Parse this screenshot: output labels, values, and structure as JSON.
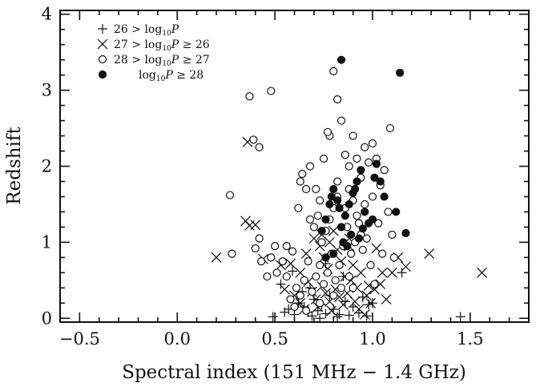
{
  "chart_data": {
    "type": "scatter",
    "title": "",
    "xlabel": "Spectral index (151 MHz − 1.4 GHz)",
    "ylabel": "Redshift",
    "xlim": [
      -0.6,
      1.8
    ],
    "ylim": [
      -0.05,
      4.05
    ],
    "grid": false,
    "legend_position": "top-left",
    "x_major_ticks": [
      -0.5,
      0.0,
      0.5,
      1.0,
      1.5
    ],
    "x_tick_labels": [
      "−0.5",
      "0.0",
      "0.5",
      "1.0",
      "1.5"
    ],
    "y_major_ticks": [
      0,
      1,
      2,
      3,
      4
    ],
    "y_tick_labels": [
      "0",
      "1",
      "2",
      "3",
      "4"
    ],
    "series": [
      {
        "name": "26 > log10P",
        "legend_prefix": "26 > log",
        "legend_suffix": "",
        "marker": "plus",
        "points": [
          [
            0.49,
            0.02
          ],
          [
            0.55,
            0.08
          ],
          [
            0.57,
            0.12
          ],
          [
            0.6,
            0.05
          ],
          [
            0.62,
            0.2
          ],
          [
            0.65,
            0.15
          ],
          [
            0.67,
            0.08
          ],
          [
            0.69,
            0.03
          ],
          [
            0.7,
            0.25
          ],
          [
            0.72,
            0.1
          ],
          [
            0.74,
            0.18
          ],
          [
            0.76,
            0.06
          ],
          [
            0.78,
            0.3
          ],
          [
            0.8,
            0.12
          ],
          [
            0.83,
            0.05
          ],
          [
            0.86,
            0.22
          ],
          [
            0.88,
            0.04
          ],
          [
            0.9,
            0.15
          ],
          [
            0.93,
            0.07
          ],
          [
            0.95,
            0.28
          ],
          [
            0.98,
            0.18
          ],
          [
            1.0,
            0.2
          ],
          [
            0.59,
            0.62
          ],
          [
            0.53,
            0.45
          ],
          [
            0.64,
            0.35
          ],
          [
            0.68,
            0.4
          ],
          [
            1.15,
            0.6
          ],
          [
            0.85,
            0.55
          ],
          [
            0.76,
            0.72
          ],
          [
            1.45,
            0.02
          ],
          [
            0.97,
            0.03
          ],
          [
            0.82,
            0.02
          ],
          [
            0.73,
            0.0
          ]
        ]
      },
      {
        "name": "27 > log10P ≥ 26",
        "legend_prefix": "27 > log",
        "legend_suffix": " ≥ 26",
        "marker": "cross",
        "points": [
          [
            0.36,
            2.32
          ],
          [
            0.35,
            1.28
          ],
          [
            0.37,
            1.22
          ],
          [
            0.4,
            1.23
          ],
          [
            0.2,
            0.8
          ],
          [
            0.44,
            0.78
          ],
          [
            0.53,
            0.7
          ],
          [
            0.58,
            0.72
          ],
          [
            0.63,
            0.6
          ],
          [
            0.66,
            0.85
          ],
          [
            0.7,
            1.05
          ],
          [
            0.73,
            0.95
          ],
          [
            0.75,
            0.8
          ],
          [
            0.77,
            0.65
          ],
          [
            0.8,
            1.15
          ],
          [
            0.82,
            0.9
          ],
          [
            0.84,
            0.75
          ],
          [
            0.86,
            0.55
          ],
          [
            0.88,
            0.95
          ],
          [
            0.9,
            0.7
          ],
          [
            0.92,
            0.4
          ],
          [
            0.94,
            0.6
          ],
          [
            0.97,
            0.3
          ],
          [
            0.99,
            0.2
          ],
          [
            1.02,
            0.92
          ],
          [
            1.04,
            0.45
          ],
          [
            1.07,
            0.25
          ],
          [
            1.1,
            0.6
          ],
          [
            1.13,
            0.8
          ],
          [
            1.17,
            0.68
          ],
          [
            1.29,
            0.85
          ],
          [
            1.56,
            0.6
          ],
          [
            0.55,
            0.38
          ],
          [
            0.6,
            0.3
          ],
          [
            0.63,
            0.2
          ],
          [
            0.65,
            0.12
          ],
          [
            0.67,
            0.48
          ],
          [
            0.69,
            0.35
          ],
          [
            0.71,
            0.25
          ],
          [
            0.72,
            0.15
          ],
          [
            0.74,
            0.42
          ],
          [
            0.76,
            0.33
          ],
          [
            0.78,
            0.22
          ],
          [
            0.79,
            0.1
          ],
          [
            0.81,
            0.38
          ],
          [
            0.83,
            0.28
          ],
          [
            0.85,
            0.18
          ],
          [
            0.87,
            0.33
          ],
          [
            0.89,
            0.5
          ],
          [
            0.91,
            0.22
          ],
          [
            0.93,
            0.12
          ],
          [
            0.96,
            0.05
          ],
          [
            0.98,
            0.43
          ],
          [
            1.01,
            0.38
          ],
          [
            1.05,
            0.6
          ],
          [
            0.78,
            1.0
          ],
          [
            0.74,
            1.1
          ],
          [
            0.88,
            1.05
          ]
        ]
      },
      {
        "name": "28 > log10P ≥ 27",
        "legend_prefix": "28 > log",
        "legend_suffix": " ≥ 27",
        "marker": "open-circle",
        "points": [
          [
            0.37,
            2.92
          ],
          [
            0.48,
            2.99
          ],
          [
            0.42,
            2.25
          ],
          [
            0.39,
            2.35
          ],
          [
            0.27,
            1.62
          ],
          [
            0.42,
            1.05
          ],
          [
            0.4,
            0.92
          ],
          [
            0.28,
            0.85
          ],
          [
            0.43,
            0.75
          ],
          [
            0.46,
            0.55
          ],
          [
            0.48,
            0.8
          ],
          [
            0.51,
            0.6
          ],
          [
            0.56,
            0.95
          ],
          [
            0.59,
            0.88
          ],
          [
            0.62,
            1.45
          ],
          [
            0.63,
            1.8
          ],
          [
            0.66,
            1.7
          ],
          [
            0.64,
            1.9
          ],
          [
            0.68,
            2.0
          ],
          [
            0.71,
            1.7
          ],
          [
            0.73,
            1.55
          ],
          [
            0.75,
            2.1
          ],
          [
            0.78,
            2.4
          ],
          [
            0.8,
            3.25
          ],
          [
            0.82,
            2.88
          ],
          [
            0.84,
            2.6
          ],
          [
            0.86,
            2.15
          ],
          [
            0.88,
            2.0
          ],
          [
            0.9,
            2.4
          ],
          [
            0.92,
            2.1
          ],
          [
            0.94,
            1.85
          ],
          [
            0.96,
            2.25
          ],
          [
            0.98,
            2.05
          ],
          [
            1.0,
            2.3
          ],
          [
            1.02,
            2.1
          ],
          [
            1.04,
            1.75
          ],
          [
            1.06,
            1.95
          ],
          [
            1.09,
            2.5
          ],
          [
            1.1,
            1.1
          ],
          [
            1.08,
            1.4
          ],
          [
            1.11,
            0.8
          ],
          [
            1.01,
            0.45
          ],
          [
            0.99,
            0.7
          ],
          [
            0.96,
            1.5
          ],
          [
            0.93,
            1.25
          ],
          [
            0.91,
            1.0
          ],
          [
            0.89,
            0.85
          ],
          [
            0.87,
            1.2
          ],
          [
            0.85,
            0.95
          ],
          [
            0.83,
            0.7
          ],
          [
            0.81,
            0.5
          ],
          [
            0.79,
            0.85
          ],
          [
            0.77,
            0.6
          ],
          [
            0.75,
            0.45
          ],
          [
            0.73,
            0.7
          ],
          [
            0.71,
            0.55
          ],
          [
            0.69,
            0.35
          ],
          [
            0.67,
            0.75
          ],
          [
            0.65,
            0.5
          ],
          [
            0.63,
            0.3
          ],
          [
            0.61,
            0.4
          ],
          [
            0.58,
            0.25
          ],
          [
            0.56,
            0.55
          ],
          [
            0.54,
            0.75
          ],
          [
            0.6,
            0.15
          ],
          [
            0.68,
            1.3
          ],
          [
            0.7,
            1.2
          ],
          [
            0.72,
            1.35
          ],
          [
            0.74,
            1.0
          ],
          [
            0.76,
            1.15
          ],
          [
            0.78,
            1.3
          ],
          [
            0.8,
            1.45
          ],
          [
            0.82,
            1.6
          ],
          [
            0.86,
            1.45
          ],
          [
            0.88,
            1.7
          ],
          [
            0.9,
            1.55
          ],
          [
            0.92,
            1.35
          ],
          [
            0.94,
            1.1
          ],
          [
            0.97,
            1.05
          ],
          [
            1.03,
            1.25
          ],
          [
            0.8,
            0.3
          ],
          [
            0.84,
            0.4
          ],
          [
            0.77,
            2.45
          ],
          [
            0.82,
            1.8
          ],
          [
            0.95,
            0.9
          ],
          [
            0.9,
            0.4
          ],
          [
            1.0,
            1.6
          ],
          [
            0.73,
            0.2
          ],
          [
            0.66,
            0.1
          ],
          [
            0.88,
            0.55
          ],
          [
            1.05,
            0.85
          ],
          [
            0.5,
            0.95
          ]
        ]
      },
      {
        "name": "log10P ≥ 28",
        "legend_prefix": "log",
        "legend_suffix": " ≥ 28",
        "marker": "filled-circle",
        "points": [
          [
            0.84,
            3.4
          ],
          [
            1.14,
            3.23
          ],
          [
            1.02,
            2.03
          ],
          [
            1.04,
            1.8
          ],
          [
            1.06,
            1.6
          ],
          [
            0.94,
            1.95
          ],
          [
            0.92,
            1.8
          ],
          [
            0.9,
            1.65
          ],
          [
            0.88,
            1.5
          ],
          [
            0.86,
            1.35
          ],
          [
            0.84,
            1.2
          ],
          [
            0.82,
            1.55
          ],
          [
            0.8,
            1.7
          ],
          [
            0.78,
            1.5
          ],
          [
            0.76,
            1.3
          ],
          [
            0.74,
            1.15
          ],
          [
            0.96,
            1.4
          ],
          [
            0.98,
            1.25
          ],
          [
            1.0,
            1.3
          ],
          [
            0.93,
            1.05
          ],
          [
            0.89,
            1.1
          ],
          [
            0.87,
            0.95
          ],
          [
            0.8,
            0.85
          ],
          [
            0.76,
            0.8
          ],
          [
            1.12,
            1.4
          ],
          [
            1.17,
            1.12
          ],
          [
            0.91,
            1.7
          ],
          [
            0.83,
            1.45
          ],
          [
            0.79,
            1.6
          ],
          [
            0.95,
            1.18
          ],
          [
            0.85,
            1.0
          ],
          [
            1.01,
            1.85
          ]
        ]
      }
    ]
  },
  "legend": {
    "title": "",
    "entries_count": 4
  }
}
